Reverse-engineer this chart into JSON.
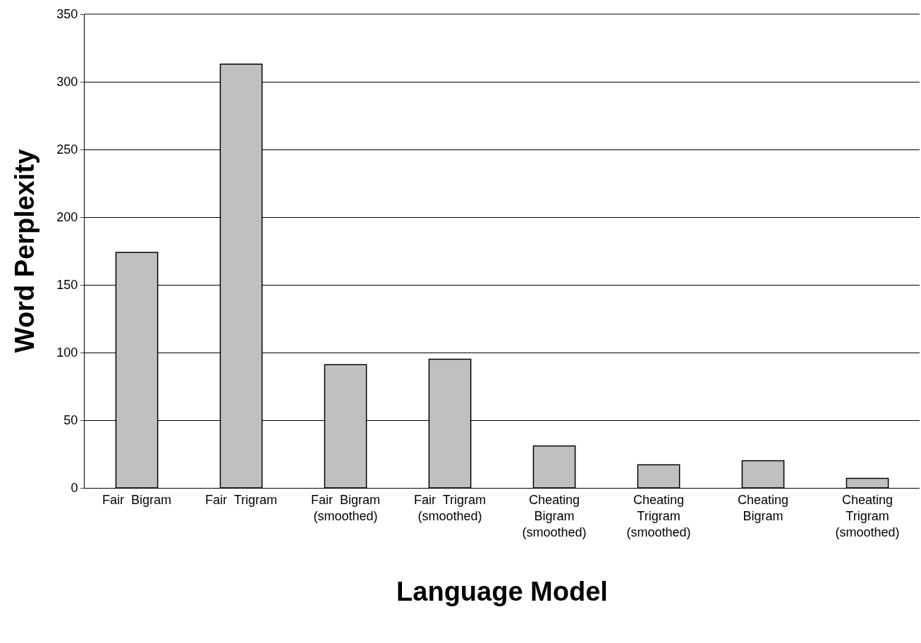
{
  "chart_data": {
    "type": "bar",
    "xlabel": "Language Model",
    "ylabel": "Word Perplexity",
    "categories": [
      "Fair  Bigram",
      "Fair  Trigram",
      "Fair  Bigram\n(smoothed)",
      "Fair  Trigram\n(smoothed)",
      "Cheating\nBigram\n(smoothed)",
      "Cheating\nTrigram\n(smoothed)",
      "Cheating\nBigram",
      "Cheating\nTrigram\n(smoothed)"
    ],
    "values": [
      174,
      313,
      91,
      95,
      31,
      17,
      20,
      7
    ],
    "color": "#c0c0c0",
    "ylim": [
      0,
      350
    ],
    "yticks": [
      0,
      50,
      100,
      150,
      200,
      250,
      300,
      350
    ],
    "grid": "y",
    "legend": false
  }
}
